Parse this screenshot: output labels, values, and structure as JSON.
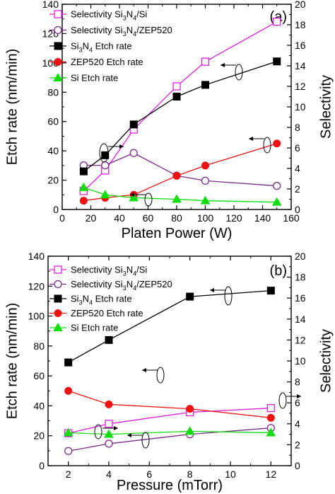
{
  "chart_data": [
    {
      "type": "line",
      "panel_label": "(a)",
      "xlabel": "Platen Power (W)",
      "ylabel": "Etch rate (nm/min)",
      "y2label": "Selectivity",
      "xlim": [
        0,
        160
      ],
      "ylim": [
        0,
        140
      ],
      "y2lim": [
        0,
        20
      ],
      "xticks": [
        0,
        20,
        40,
        60,
        80,
        100,
        120,
        140,
        160
      ],
      "yticks": [
        0,
        20,
        40,
        60,
        80,
        100,
        120,
        140
      ],
      "y2ticks": [
        0,
        2,
        4,
        6,
        8,
        10,
        12,
        14,
        16,
        18,
        20
      ],
      "legend_position": "top-left",
      "series": [
        {
          "name": "Selectivity Si3N4/Si",
          "axis": "right",
          "color": "#e020e0",
          "marker": "open-square",
          "x": [
            15,
            30,
            50,
            80,
            100,
            150
          ],
          "y": [
            1.8,
            3.8,
            7.8,
            12.0,
            14.4,
            18.3
          ]
        },
        {
          "name": "Selectivity Si3N4/ZEP520",
          "axis": "right",
          "color": "#7a2a8a",
          "marker": "open-circle",
          "x": [
            15,
            30,
            50,
            80,
            100,
            150
          ],
          "y": [
            4.3,
            4.3,
            5.5,
            3.3,
            2.8,
            2.3
          ]
        },
        {
          "name": "Si3N4 Etch rate",
          "axis": "left",
          "color": "#000000",
          "marker": "filled-square",
          "x": [
            15,
            30,
            50,
            80,
            100,
            150
          ],
          "y": [
            26,
            37,
            58,
            77,
            85,
            101
          ]
        },
        {
          "name": "ZEP520 Etch rate",
          "axis": "left",
          "color": "#ee1111",
          "marker": "filled-circle",
          "x": [
            15,
            30,
            50,
            80,
            100,
            150
          ],
          "y": [
            6,
            8,
            10,
            23,
            30,
            45
          ]
        },
        {
          "name": "Si Etch rate",
          "axis": "left",
          "color": "#11dd11",
          "marker": "filled-triangle",
          "x": [
            15,
            30,
            50,
            80,
            100,
            150
          ],
          "y": [
            15,
            10,
            8,
            7,
            6,
            5
          ]
        }
      ]
    },
    {
      "type": "line",
      "panel_label": "(b)",
      "xlabel": "Pressure (mTorr)",
      "ylabel": "Etch rate (nm/min)",
      "y2label": "Selectivity",
      "xlim": [
        1,
        13
      ],
      "ylim": [
        0,
        140
      ],
      "y2lim": [
        0,
        20
      ],
      "xticks": [
        2,
        4,
        6,
        8,
        10,
        12
      ],
      "yticks": [
        0,
        20,
        40,
        60,
        80,
        100,
        120,
        140
      ],
      "y2ticks": [
        0,
        2,
        4,
        6,
        8,
        10,
        12,
        14,
        16,
        18,
        20
      ],
      "legend_position": "top-left",
      "series": [
        {
          "name": "Selectivity Si3N4/Si",
          "axis": "right",
          "color": "#e020e0",
          "marker": "open-square",
          "x": [
            2,
            4,
            8,
            12
          ],
          "y": [
            3.1,
            4.0,
            5.1,
            5.5
          ]
        },
        {
          "name": "Selectivity Si3N4/ZEP520",
          "axis": "right",
          "color": "#7a2a8a",
          "marker": "open-circle",
          "x": [
            2,
            4,
            8,
            12
          ],
          "y": [
            1.4,
            2.1,
            3.0,
            3.6
          ]
        },
        {
          "name": "Si3N4 Etch rate",
          "axis": "left",
          "color": "#000000",
          "marker": "filled-square",
          "x": [
            2,
            4,
            8,
            12
          ],
          "y": [
            69,
            84,
            113,
            117
          ]
        },
        {
          "name": "ZEP520 Etch rate",
          "axis": "left",
          "color": "#ee1111",
          "marker": "filled-circle",
          "x": [
            2,
            4,
            8,
            12
          ],
          "y": [
            50,
            41,
            38,
            32
          ]
        },
        {
          "name": "Si Etch rate",
          "axis": "left",
          "color": "#11dd11",
          "marker": "filled-triangle",
          "x": [
            2,
            4,
            8,
            12
          ],
          "y": [
            22,
            21,
            23,
            22
          ]
        }
      ]
    }
  ]
}
